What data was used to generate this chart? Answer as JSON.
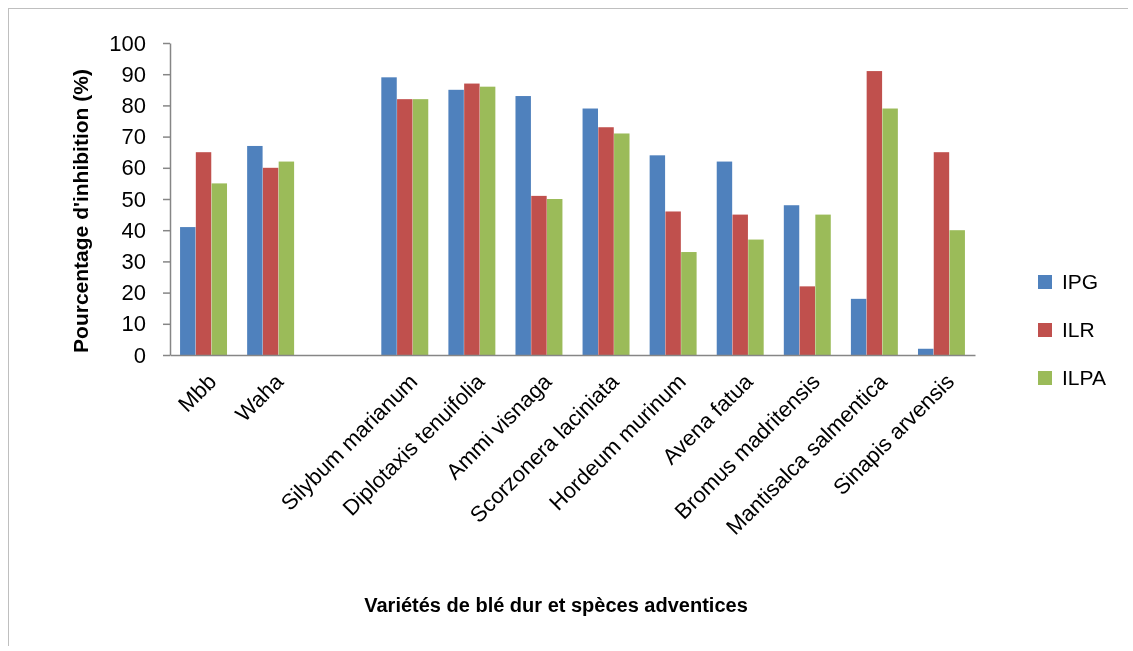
{
  "chart_data": {
    "type": "bar",
    "xlabel": "Variétés de blé dur et spèces adventices",
    "ylabel": "Pourcentage d'inhibition (%)",
    "categories": [
      "Mbb",
      "Waha",
      null,
      "Silybum marianum",
      "Diplotaxis tenuifolia",
      "Ammi visnaga",
      "Scorzonera laciniata",
      "Hordeum murinum",
      "Avena fatua",
      "Bromus madritensis",
      "Mantisalca salmentica",
      "Sinapis arvensis"
    ],
    "series": [
      {
        "name": "IPG",
        "color": "#4f81bd",
        "values": [
          41,
          67,
          null,
          89,
          85,
          83,
          79,
          64,
          62,
          48,
          18,
          2
        ]
      },
      {
        "name": "ILR",
        "color": "#c0504d",
        "values": [
          65,
          60,
          null,
          82,
          87,
          51,
          73,
          46,
          45,
          22,
          91,
          65
        ]
      },
      {
        "name": "ILPA",
        "color": "#9bbb59",
        "values": [
          55,
          62,
          null,
          82,
          86,
          50,
          71,
          33,
          37,
          45,
          79,
          40
        ]
      }
    ],
    "ylim": [
      0,
      100
    ],
    "yticks": [
      0,
      10,
      20,
      30,
      40,
      50,
      60,
      70,
      80,
      90,
      100
    ],
    "legend": "right"
  }
}
